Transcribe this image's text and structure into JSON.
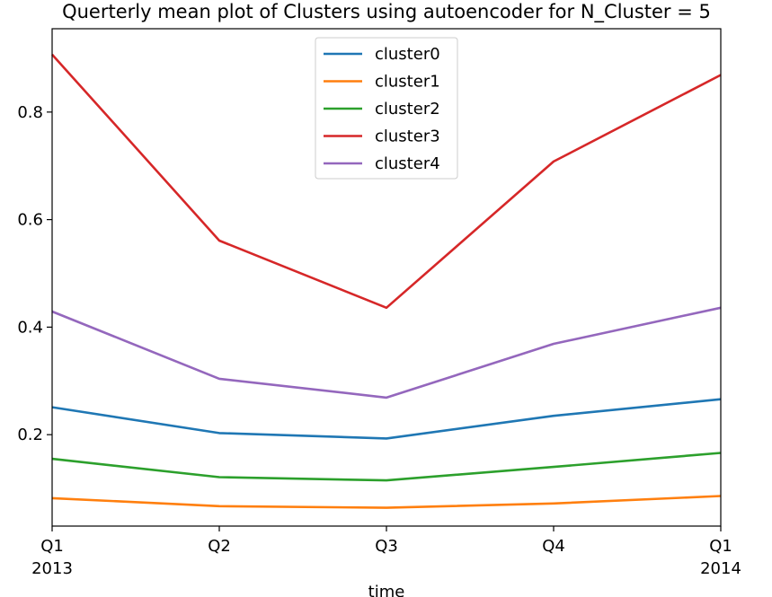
{
  "chart_data": {
    "type": "line",
    "title": "Querterly mean plot of Clusters using autoencoder for N_Cluster = 5",
    "xlabel": "time",
    "ylabel": "",
    "x": [
      "2013 Q1",
      "2013 Q2",
      "2013 Q3",
      "2013 Q4",
      "2014 Q1"
    ],
    "x_ticks": [
      {
        "label": "Q1",
        "sub": "2013"
      },
      {
        "label": "Q2",
        "sub": ""
      },
      {
        "label": "Q3",
        "sub": ""
      },
      {
        "label": "Q4",
        "sub": ""
      },
      {
        "label": "Q1",
        "sub": "2014"
      }
    ],
    "y_ticks": [
      "0.2",
      "0.4",
      "0.6",
      "0.8"
    ],
    "ylim": [
      0.03,
      0.955
    ],
    "grid": false,
    "legend_position": "top-center",
    "series": [
      {
        "name": "cluster0",
        "color": "#1f77b4",
        "values": [
          0.251,
          0.203,
          0.193,
          0.235,
          0.266
        ]
      },
      {
        "name": "cluster1",
        "color": "#ff7f0e",
        "values": [
          0.082,
          0.067,
          0.064,
          0.072,
          0.086
        ]
      },
      {
        "name": "cluster2",
        "color": "#2ca02c",
        "values": [
          0.155,
          0.121,
          0.115,
          0.14,
          0.166
        ]
      },
      {
        "name": "cluster3",
        "color": "#d62728",
        "values": [
          0.907,
          0.561,
          0.436,
          0.708,
          0.869
        ]
      },
      {
        "name": "cluster4",
        "color": "#9467bd",
        "values": [
          0.429,
          0.304,
          0.269,
          0.369,
          0.436
        ]
      }
    ]
  }
}
